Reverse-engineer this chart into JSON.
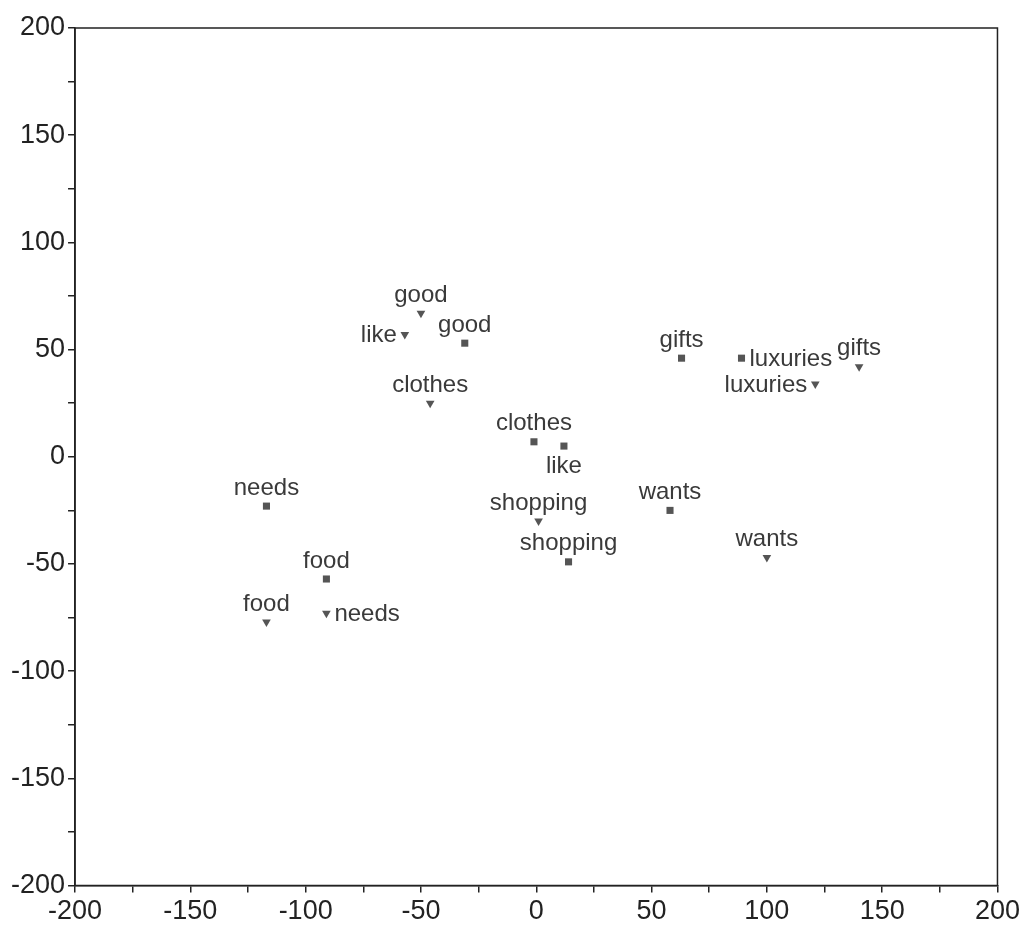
{
  "chart_data": {
    "type": "scatter",
    "xlim": [
      -200,
      200
    ],
    "xticks": [
      -200,
      {
        "value": -175,
        "label": null
      },
      -150,
      {
        "value": -125,
        "label": null
      },
      -100,
      {
        "value": -75,
        "label": null
      },
      -50,
      {
        "value": -25,
        "label": null
      },
      0,
      {
        "value": 25,
        "label": null
      },
      50,
      {
        "value": 75,
        "label": null
      },
      100,
      {
        "value": 125,
        "label": null
      },
      150,
      {
        "value": 175,
        "label": null
      },
      200
    ],
    "ylim": [
      -200,
      200
    ],
    "yticks": [
      -200,
      {
        "value": -175,
        "label": null
      },
      -150,
      {
        "value": -125,
        "label": null
      },
      -100,
      {
        "value": -75,
        "label": null
      },
      -50,
      {
        "value": -25,
        "label": null
      },
      0,
      {
        "value": 25,
        "label": null
      },
      50,
      {
        "value": 75,
        "label": null
      },
      100,
      {
        "value": 125,
        "label": null
      },
      150,
      {
        "value": 175,
        "label": null
      },
      200
    ],
    "series": [
      {
        "color": "#555555",
        "marker": "square",
        "x": [
          -31,
          -1,
          12,
          14,
          58,
          -117,
          63,
          89,
          -91
        ],
        "values": [
          53,
          7,
          5,
          -49,
          -25,
          -23,
          46,
          46,
          -57
        ]
      },
      {
        "color": "#555555",
        "marker": "triangle",
        "x": [
          -50,
          -57,
          -46,
          1,
          100,
          -117,
          -91,
          121,
          140
        ],
        "values": [
          67,
          57,
          25,
          -30,
          -47,
          -77,
          -73,
          34,
          42
        ]
      }
    ],
    "annotations": [
      {
        "text": "good",
        "x": -31,
        "y": 53
      },
      {
        "text": "clothes",
        "x": -1,
        "y": 7
      },
      {
        "text": "like",
        "x": 12,
        "y": 5
      },
      {
        "text": "shopping",
        "x": 14,
        "y": -49
      },
      {
        "text": "wants",
        "x": 58,
        "y": -25
      },
      {
        "text": "needs",
        "x": -117,
        "y": -23
      },
      {
        "text": "gifts",
        "x": 63,
        "y": 46
      },
      {
        "text": "luxuries",
        "x": 89,
        "y": 46
      },
      {
        "text": "food",
        "x": -91,
        "y": -57
      },
      {
        "text": "good",
        "x": -50,
        "y": 67
      },
      {
        "text": "like",
        "x": -57,
        "y": 57
      },
      {
        "text": "clothes",
        "x": -46,
        "y": 25
      },
      {
        "text": "shopping",
        "x": 1,
        "y": -30
      },
      {
        "text": "wants",
        "x": 100,
        "y": -47
      },
      {
        "text": "food",
        "x": -117,
        "y": -77
      },
      {
        "text": "needs",
        "x": -91,
        "y": -73
      },
      {
        "text": "luxuries",
        "x": 121,
        "y": 34
      },
      {
        "text": "gifts",
        "x": 140,
        "y": 42
      }
    ]
  }
}
